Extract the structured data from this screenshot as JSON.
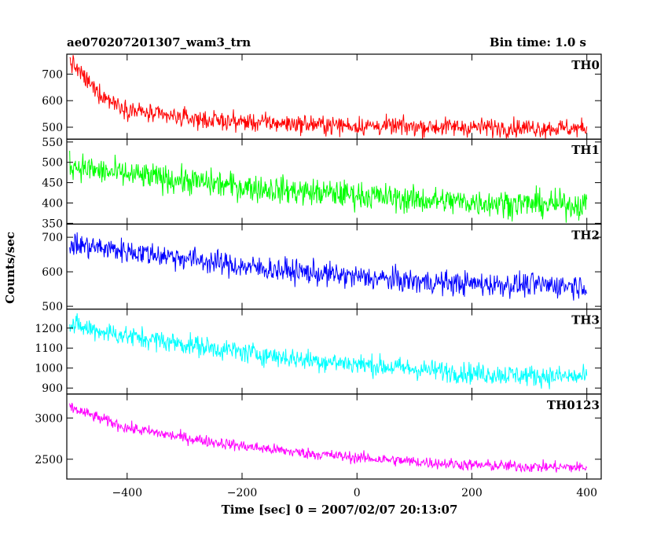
{
  "header": {
    "title": "ae070207201307_wam3_trn",
    "bin_time": "Bin time: 1.0 s"
  },
  "chart_data": {
    "type": "line",
    "title": "ae070207201307_wam3_trn",
    "xlabel": "Time [sec] 0 = 2007/02/07 20:13:07",
    "ylabel": "Counts/sec",
    "xlim": [
      -505,
      425
    ],
    "x_ticks": [
      -400,
      -200,
      0,
      200,
      400
    ],
    "x_tick_labels": [
      "−400",
      "−200",
      "0",
      "200",
      "400"
    ],
    "x_range": [
      -500,
      400
    ],
    "grid": false,
    "panels": [
      {
        "name": "TH0",
        "color": "#ff0000",
        "ylim": [
          455,
          775
        ],
        "y_ticks": [
          500,
          600,
          700
        ],
        "y_tick_labels": [
          "500",
          "600",
          "700"
        ],
        "points": [
          [
            -500,
            750
          ],
          [
            -480,
            700
          ],
          [
            -460,
            650
          ],
          [
            -440,
            615
          ],
          [
            -420,
            590
          ],
          [
            -400,
            570
          ],
          [
            -350,
            545
          ],
          [
            -300,
            535
          ],
          [
            -250,
            525
          ],
          [
            -200,
            520
          ],
          [
            -100,
            512
          ],
          [
            0,
            505
          ],
          [
            100,
            502
          ],
          [
            200,
            500
          ],
          [
            300,
            498
          ],
          [
            400,
            495
          ]
        ],
        "noise": 25
      },
      {
        "name": "TH1",
        "color": "#00ff00",
        "ylim": [
          348,
          557
        ],
        "y_ticks": [
          350,
          400,
          450,
          500,
          550
        ],
        "y_tick_labels": [
          "350",
          "400",
          "450",
          "500",
          "550"
        ],
        "points": [
          [
            -500,
            495
          ],
          [
            -450,
            478
          ],
          [
            -400,
            470
          ],
          [
            -300,
            455
          ],
          [
            -200,
            440
          ],
          [
            -100,
            428
          ],
          [
            0,
            420
          ],
          [
            100,
            408
          ],
          [
            200,
            402
          ],
          [
            300,
            398
          ],
          [
            400,
            395
          ]
        ],
        "noise": 24
      },
      {
        "name": "TH2",
        "color": "#0000ff",
        "ylim": [
          492,
          738
        ],
        "y_ticks": [
          500,
          600,
          700
        ],
        "y_tick_labels": [
          "500",
          "600",
          "700"
        ],
        "points": [
          [
            -500,
            680
          ],
          [
            -400,
            660
          ],
          [
            -300,
            640
          ],
          [
            -200,
            615
          ],
          [
            -100,
            600
          ],
          [
            0,
            585
          ],
          [
            100,
            572
          ],
          [
            200,
            565
          ],
          [
            300,
            562
          ],
          [
            400,
            560
          ]
        ],
        "noise": 25
      },
      {
        "name": "TH3",
        "color": "#00ffff",
        "ylim": [
          870,
          1295
        ],
        "y_ticks": [
          900,
          1000,
          1100,
          1200
        ],
        "y_tick_labels": [
          "900",
          "1000",
          "1100",
          "1200"
        ],
        "points": [
          [
            -500,
            1215
          ],
          [
            -400,
            1160
          ],
          [
            -300,
            1120
          ],
          [
            -200,
            1080
          ],
          [
            -100,
            1045
          ],
          [
            0,
            1020
          ],
          [
            100,
            995
          ],
          [
            200,
            975
          ],
          [
            300,
            962
          ],
          [
            400,
            955
          ]
        ],
        "noise": 38
      },
      {
        "name": "TH0123",
        "color": "#ff00ff",
        "ylim": [
          2260,
          3290
        ],
        "y_ticks": [
          2500,
          3000
        ],
        "y_tick_labels": [
          "2500",
          "3000"
        ],
        "points": [
          [
            -500,
            3130
          ],
          [
            -450,
            3000
          ],
          [
            -400,
            2880
          ],
          [
            -300,
            2760
          ],
          [
            -200,
            2660
          ],
          [
            -100,
            2580
          ],
          [
            0,
            2520
          ],
          [
            100,
            2470
          ],
          [
            200,
            2430
          ],
          [
            300,
            2410
          ],
          [
            400,
            2400
          ]
        ],
        "noise": 50
      }
    ]
  }
}
